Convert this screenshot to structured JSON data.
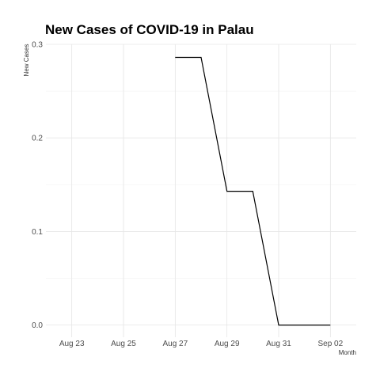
{
  "chart_data": {
    "type": "line",
    "title": "New Cases of COVID-19 in Palau",
    "xlabel": "Month",
    "ylabel": "New Cases",
    "x_tick_labels": [
      "Aug 23",
      "Aug 25",
      "Aug 27",
      "Aug 29",
      "Aug 31",
      "Sep 02"
    ],
    "x_tick_dates": [
      "2021-08-23",
      "2021-08-25",
      "2021-08-27",
      "2021-08-29",
      "2021-08-31",
      "2021-09-02"
    ],
    "xlim": [
      "2021-08-22",
      "2021-09-03"
    ],
    "y_ticks": [
      0.0,
      0.1,
      0.2,
      0.3
    ],
    "y_tick_labels": [
      "0.0",
      "0.1",
      "0.2",
      "0.3"
    ],
    "ylim": [
      -0.013,
      0.3
    ],
    "grid": true,
    "series": [
      {
        "x": [
          "2021-08-27",
          "2021-08-28",
          "2021-08-29",
          "2021-08-30",
          "2021-08-31",
          "2021-09-01",
          "2021-09-02"
        ],
        "values": [
          0.286,
          0.286,
          0.143,
          0.143,
          0.0,
          0.0,
          0.0
        ]
      }
    ]
  }
}
